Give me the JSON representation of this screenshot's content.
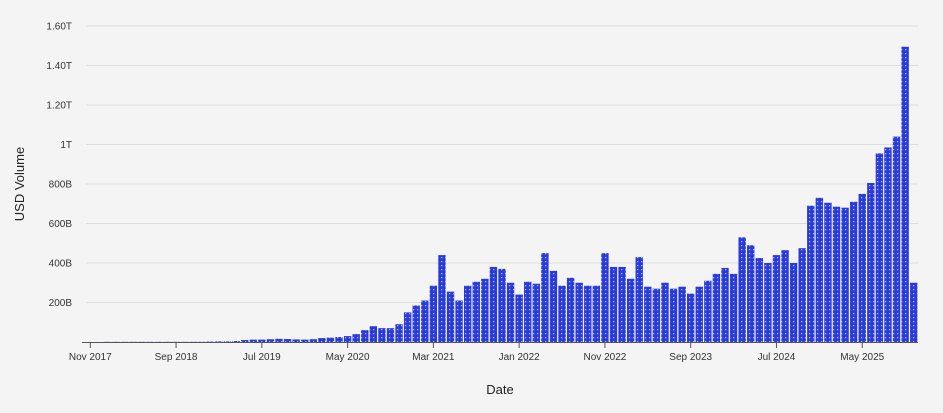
{
  "chart_data": {
    "type": "bar",
    "xlabel": "Date",
    "ylabel": "USD Volume",
    "ylim": [
      0,
      1600000000000
    ],
    "y_ticks": [
      {
        "value": 200000000000,
        "label": "200B"
      },
      {
        "value": 400000000000,
        "label": "400B"
      },
      {
        "value": 600000000000,
        "label": "600B"
      },
      {
        "value": 800000000000,
        "label": "800B"
      },
      {
        "value": 1000000000000,
        "label": "1T"
      },
      {
        "value": 1200000000000,
        "label": "1.20T"
      },
      {
        "value": 1400000000000,
        "label": "1.40T"
      },
      {
        "value": 1600000000000,
        "label": "1.60T"
      }
    ],
    "x_ticks": [
      {
        "date": "2017-11",
        "label": "Nov 2017"
      },
      {
        "date": "2018-09",
        "label": "Sep 2018"
      },
      {
        "date": "2019-07",
        "label": "Jul 2019"
      },
      {
        "date": "2020-05",
        "label": "May 2020"
      },
      {
        "date": "2021-03",
        "label": "Mar 2021"
      },
      {
        "date": "2022-01",
        "label": "Jan 2022"
      },
      {
        "date": "2022-11",
        "label": "Nov 2022"
      },
      {
        "date": "2023-09",
        "label": "Sep 2023"
      },
      {
        "date": "2024-07",
        "label": "Jul 2024"
      },
      {
        "date": "2025-05",
        "label": "May 2025"
      }
    ],
    "grid": true,
    "bar_color": "#2a3bd6",
    "series": [
      {
        "x": [
          "2017-11",
          "2017-12",
          "2018-01",
          "2018-02",
          "2018-03",
          "2018-04",
          "2018-05",
          "2018-06",
          "2018-07",
          "2018-08",
          "2018-09",
          "2018-10",
          "2018-11",
          "2018-12",
          "2019-01",
          "2019-02",
          "2019-03",
          "2019-04",
          "2019-05",
          "2019-06",
          "2019-07",
          "2019-08",
          "2019-09",
          "2019-10",
          "2019-11",
          "2019-12",
          "2020-01",
          "2020-02",
          "2020-03",
          "2020-04",
          "2020-05",
          "2020-06",
          "2020-07",
          "2020-08",
          "2020-09",
          "2020-10",
          "2020-11",
          "2020-12",
          "2021-01",
          "2021-02",
          "2021-03",
          "2021-04",
          "2021-05",
          "2021-06",
          "2021-07",
          "2021-08",
          "2021-09",
          "2021-10",
          "2021-11",
          "2021-12",
          "2022-01",
          "2022-02",
          "2022-03",
          "2022-04",
          "2022-05",
          "2022-06",
          "2022-07",
          "2022-08",
          "2022-09",
          "2022-10",
          "2022-11",
          "2022-12",
          "2023-01",
          "2023-02",
          "2023-03",
          "2023-04",
          "2023-05",
          "2023-06",
          "2023-07",
          "2023-08",
          "2023-09",
          "2023-10",
          "2023-11",
          "2023-12",
          "2024-01",
          "2024-02",
          "2024-03",
          "2024-04",
          "2024-05",
          "2024-06",
          "2024-07",
          "2024-08",
          "2024-09",
          "2024-10",
          "2024-11",
          "2024-12",
          "2025-01",
          "2025-02",
          "2025-03",
          "2025-04",
          "2025-05",
          "2025-06",
          "2025-07",
          "2025-08",
          "2025-09",
          "2025-10",
          "2025-11"
        ],
        "values": [
          0,
          0,
          1000000000,
          1000000000,
          1000000000,
          1000000000,
          1000000000,
          1000000000,
          1000000000,
          1000000000,
          1000000000,
          1000000000,
          1000000000,
          1000000000,
          2000000000,
          3000000000,
          3000000000,
          5000000000,
          10000000000,
          12000000000,
          12000000000,
          14000000000,
          16000000000,
          15000000000,
          13000000000,
          12000000000,
          14000000000,
          20000000000,
          22000000000,
          25000000000,
          30000000000,
          40000000000,
          60000000000,
          80000000000,
          70000000000,
          70000000000,
          90000000000,
          150000000000,
          185000000000,
          210000000000,
          285000000000,
          440000000000,
          255000000000,
          210000000000,
          285000000000,
          305000000000,
          320000000000,
          380000000000,
          370000000000,
          300000000000,
          240000000000,
          305000000000,
          295000000000,
          450000000000,
          360000000000,
          285000000000,
          325000000000,
          300000000000,
          285000000000,
          285000000000,
          450000000000,
          380000000000,
          380000000000,
          320000000000,
          430000000000,
          280000000000,
          270000000000,
          300000000000,
          270000000000,
          280000000000,
          245000000000,
          280000000000,
          310000000000,
          345000000000,
          375000000000,
          345000000000,
          530000000000,
          490000000000,
          425000000000,
          400000000000,
          440000000000,
          465000000000,
          400000000000,
          475000000000,
          690000000000,
          730000000000,
          705000000000,
          685000000000,
          680000000000,
          710000000000,
          750000000000,
          805000000000,
          955000000000,
          985000000000,
          1040000000000,
          1495000000000,
          300000000000
        ]
      }
    ]
  }
}
